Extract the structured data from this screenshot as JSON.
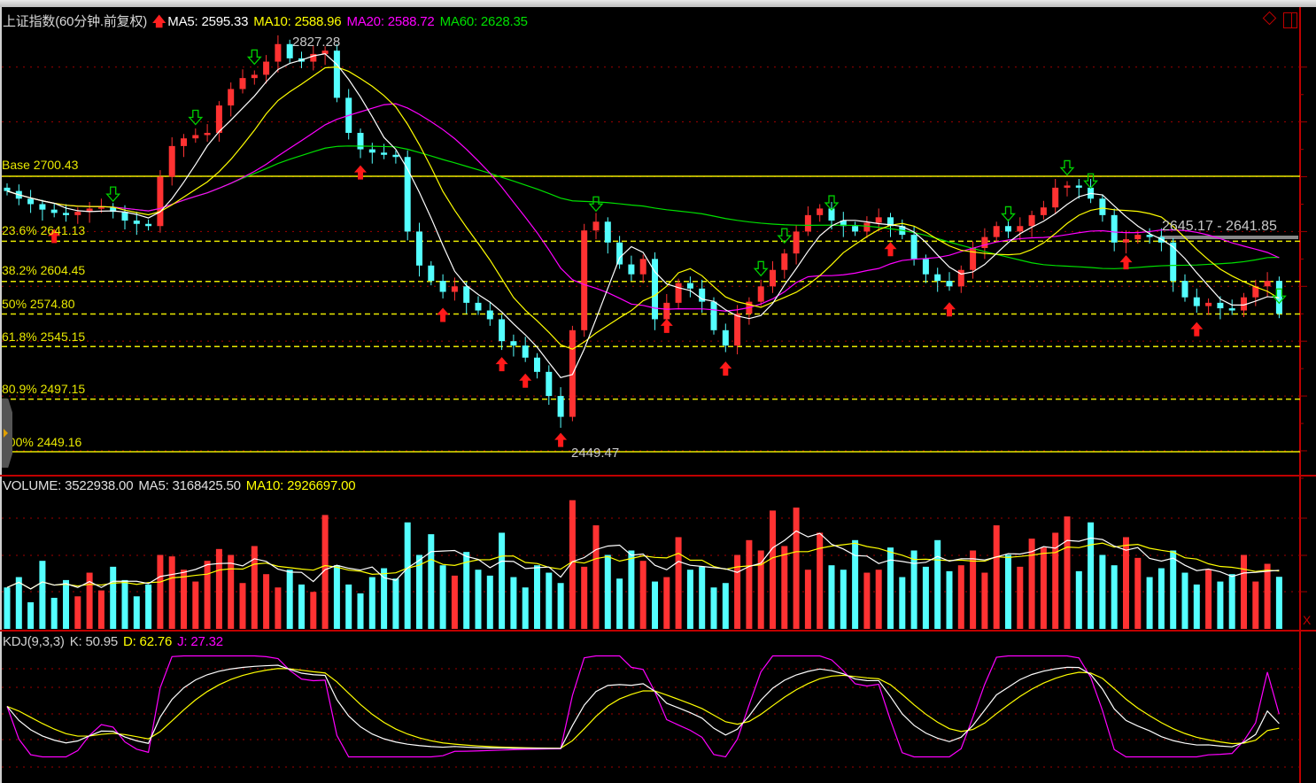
{
  "header": {
    "title": "上证指数(60分钟.前复权)",
    "ma5": "MA5: 2595.33",
    "ma10": "MA10: 2588.96",
    "ma20": "MA20: 2588.72",
    "ma60": "MA60: 2628.35"
  },
  "volume_header": {
    "volume": "VOLUME: 3522938.00",
    "ma5": "MA5: 3168425.50",
    "ma10": "MA10: 2926697.00"
  },
  "kdj_header": {
    "name": "KDJ(9,3,3)",
    "k": "K: 50.95",
    "d": "D: 62.76",
    "j": "J: 27.32"
  },
  "fib_levels": [
    {
      "label": "Base 2700.43",
      "price": 2700.43,
      "solid": true
    },
    {
      "label": "23.6% 2641.13",
      "price": 2641.13,
      "solid": false
    },
    {
      "label": "38.2% 2604.45",
      "price": 2604.45,
      "solid": false
    },
    {
      "label": "50% 2574.80",
      "price": 2574.8,
      "solid": false
    },
    {
      "label": "61.8% 2545.15",
      "price": 2545.15,
      "solid": false
    },
    {
      "label": "80.9% 2497.15",
      "price": 2497.15,
      "solid": false
    },
    {
      "label": "100% 2449.16",
      "price": 2449.16,
      "solid": true
    }
  ],
  "annotations": {
    "high": "2827.28",
    "low": "2449.47",
    "range": "2645.17 - 2641.85",
    "x_button": "X"
  },
  "colors": {
    "up": "#ff3232",
    "down": "#54ffff",
    "ma5": "#ffffff",
    "ma10": "#ffff00",
    "ma20": "#ff00ff",
    "ma60": "#00e000",
    "fib": "#e8e800",
    "grid": "#a00000"
  },
  "chart_data": {
    "type": "candlestick",
    "title": "上证指数(60分钟.前复权)",
    "ylim": [
      2427,
      2853
    ],
    "price_gridlines": [
      2800,
      2750,
      2700,
      2650,
      2600,
      2550,
      2500,
      2450
    ],
    "close": [
      2687,
      2680,
      2675,
      2670,
      2667,
      2665,
      2668,
      2671,
      2672,
      2668,
      2660,
      2657,
      2655,
      2700,
      2728,
      2735,
      2738,
      2740,
      2765,
      2780,
      2790,
      2793,
      2805,
      2821,
      2808,
      2805,
      2812,
      2815,
      2772,
      2740,
      2725,
      2722,
      2720,
      2718,
      2650,
      2619,
      2605,
      2595,
      2600,
      2585,
      2578,
      2570,
      2550,
      2546,
      2535,
      2522,
      2500,
      2481,
      2560,
      2651,
      2659,
      2640,
      2620,
      2611,
      2625,
      2570,
      2585,
      2603,
      2598,
      2586,
      2560,
      2546,
      2575,
      2586,
      2600,
      2615,
      2630,
      2650,
      2665,
      2671,
      2660,
      2655,
      2650,
      2658,
      2663,
      2655,
      2647,
      2625,
      2611,
      2605,
      2600,
      2615,
      2635,
      2645,
      2655,
      2650,
      2655,
      2665,
      2672,
      2690,
      2692,
      2690,
      2680,
      2665,
      2640,
      2643,
      2647,
      2645,
      2640,
      2605,
      2590,
      2582,
      2585,
      2580,
      2578,
      2590,
      2600,
      2605,
      2575
    ],
    "volume_millions": [
      2.8,
      3.5,
      1.8,
      4.6,
      2.1,
      3.3,
      2.2,
      3.8,
      2.6,
      4.2,
      3.3,
      2.2,
      3.0,
      5.0,
      4.9,
      4.0,
      3.2,
      4.6,
      5.4,
      5.0,
      3.1,
      5.6,
      3.7,
      2.8,
      4.0,
      3.0,
      2.5,
      7.7,
      4.3,
      3.0,
      2.4,
      3.5,
      4.1,
      3.4,
      7.2,
      5.0,
      6.4,
      4.3,
      3.6,
      5.2,
      4.0,
      3.6,
      6.5,
      3.5,
      2.8,
      4.3,
      3.8,
      3.1,
      8.7,
      4.2,
      7.0,
      5.0,
      3.4,
      5.3,
      4.6,
      3.2,
      3.5,
      6.2,
      4.0,
      4.2,
      2.8,
      3.1,
      5.0,
      6.0,
      5.3,
      8.0,
      5.6,
      8.2,
      4.0,
      6.5,
      4.3,
      4.0,
      6.0,
      3.8,
      4.0,
      5.5,
      3.5,
      5.3,
      4.2,
      6.0,
      3.9,
      4.3,
      5.3,
      3.8,
      7.0,
      5.0,
      4.2,
      6.1,
      5.5,
      6.5,
      7.6,
      3.9,
      7.2,
      5.0,
      4.3,
      6.2,
      4.8,
      3.5,
      4.1,
      5.3,
      3.8,
      3.0,
      4.0,
      3.2,
      3.7,
      5.0,
      3.2,
      4.4,
      3.52
    ],
    "buy_signals": [
      4,
      30,
      37,
      42,
      44,
      47,
      56,
      61,
      75,
      80,
      95,
      101
    ],
    "sell_signals": [
      9,
      16,
      21,
      50,
      64,
      66,
      70,
      85,
      90,
      92,
      108
    ],
    "kdj_ylim": [
      0,
      100
    ]
  }
}
